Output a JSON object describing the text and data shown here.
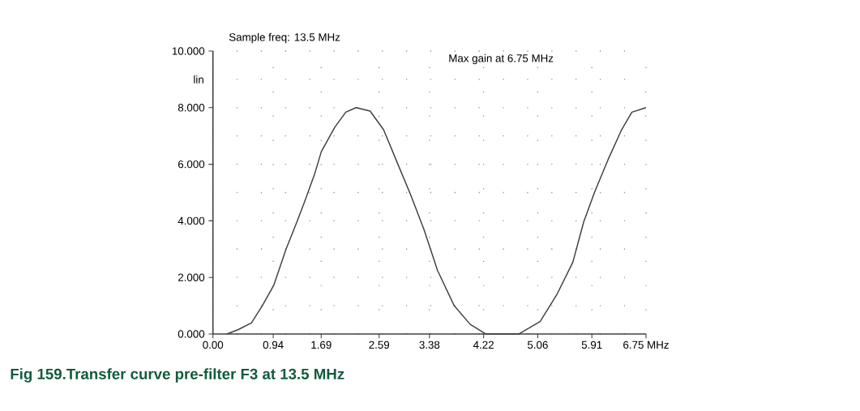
{
  "chart_data": {
    "type": "line",
    "title": "Fig 159.Transfer curve pre-filter F3 at 13.5 MHz",
    "ylabel": "lin",
    "annotations": [
      "Sample freq: 13.5 MHz",
      "Max gain at 6.75 MHz"
    ],
    "xlim": [
      0,
      6.75
    ],
    "ylim": [
      0,
      10
    ],
    "xticks": [
      {
        "value": 0,
        "label": "0.00"
      },
      {
        "value": 0.94,
        "label": "0.94"
      },
      {
        "value": 1.6875,
        "label": "1.69"
      },
      {
        "value": 2.59,
        "label": "2.59"
      },
      {
        "value": 3.375,
        "label": "3.38"
      },
      {
        "value": 4.21875,
        "label": "4.22"
      },
      {
        "value": 5.0625,
        "label": "5.06"
      },
      {
        "value": 5.90625,
        "label": "5.91"
      },
      {
        "value": 6.75,
        "label": "6.75 MHz"
      }
    ],
    "yticks": [
      {
        "value": 0,
        "label": "0.000"
      },
      {
        "value": 2,
        "label": "2.000"
      },
      {
        "value": 4,
        "label": "4.000"
      },
      {
        "value": 6,
        "label": "6.000"
      },
      {
        "value": 8,
        "label": "8.000"
      },
      {
        "value": 10,
        "label": "10.000"
      }
    ],
    "grid": true,
    "marker": "none",
    "line_style": "solid",
    "x": [
      0.22,
      0.39,
      0.6,
      0.77,
      0.95,
      1.14,
      1.31,
      1.44,
      1.59,
      1.69,
      1.9,
      2.07,
      2.23,
      2.45,
      2.66,
      2.87,
      3.08,
      3.29,
      3.5,
      3.76,
      4.01,
      4.25,
      4.77,
      5.1,
      5.36,
      5.61,
      5.78,
      5.95,
      6.16,
      6.37,
      6.53,
      6.75
    ],
    "series": [
      {
        "color": "#404040",
        "values": [
          0.0,
          0.15,
          0.39,
          1.0,
          1.73,
          3.0,
          3.97,
          4.74,
          5.69,
          6.45,
          7.31,
          7.84,
          8.0,
          7.88,
          7.22,
          6.07,
          4.93,
          3.69,
          2.25,
          1.0,
          0.34,
          0.0,
          0.0,
          0.44,
          1.39,
          2.54,
          3.97,
          5.02,
          6.17,
          7.22,
          7.84,
          8.0
        ]
      }
    ]
  }
}
